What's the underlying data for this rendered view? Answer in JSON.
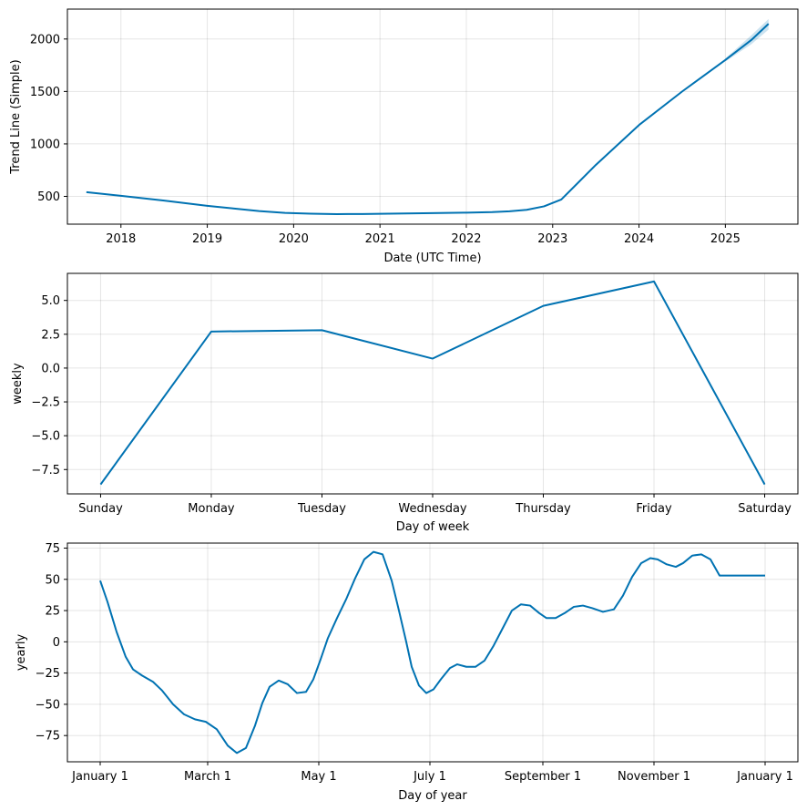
{
  "chart_data": [
    {
      "type": "line",
      "xlabel": "Date (UTC Time)",
      "ylabel": "Trend Line (Simple)",
      "x_ticks": [
        "2018",
        "2019",
        "2020",
        "2021",
        "2022",
        "2023",
        "2024",
        "2025"
      ],
      "y_ticks": [
        "500",
        "1000",
        "1500",
        "2000"
      ],
      "xlim": [
        2017.38,
        2025.84
      ],
      "ylim": [
        235,
        2285
      ],
      "grid": true,
      "series": [
        {
          "x": [
            2017.6,
            2018.0,
            2018.5,
            2019.0,
            2019.3,
            2019.6,
            2019.9,
            2020.2,
            2020.5,
            2020.8,
            2021.2,
            2021.6,
            2022.0,
            2022.3,
            2022.5,
            2022.7,
            2022.9,
            2023.1,
            2023.5,
            2024.0,
            2024.5,
            2025.0,
            2025.3,
            2025.5
          ],
          "y": [
            540,
            505,
            460,
            410,
            385,
            360,
            343,
            335,
            331,
            332,
            336,
            340,
            345,
            350,
            358,
            372,
            405,
            470,
            800,
            1180,
            1500,
            1800,
            1990,
            2145
          ]
        }
      ],
      "band": {
        "x": [
          2025.0,
          2025.3,
          2025.5
        ],
        "lower": [
          1785,
          1950,
          2090
        ],
        "upper": [
          1815,
          2035,
          2190
        ]
      }
    },
    {
      "type": "line",
      "xlabel": "Day of week",
      "ylabel": "weekly",
      "categories": [
        "Sunday",
        "Monday",
        "Tuesday",
        "Wednesday",
        "Thursday",
        "Friday",
        "Saturday"
      ],
      "y_ticks": [
        "5.0",
        "2.5",
        "0.0",
        "−2.5",
        "−5.0",
        "−7.5"
      ],
      "ylim": [
        -9.3,
        7.0
      ],
      "grid": true,
      "series": [
        {
          "values": [
            -8.6,
            2.7,
            2.8,
            0.7,
            4.6,
            6.4,
            -8.6
          ]
        }
      ]
    },
    {
      "type": "line",
      "xlabel": "Day of year",
      "ylabel": "yearly",
      "x_ticks": [
        "January 1",
        "March 1",
        "May 1",
        "July 1",
        "September 1",
        "November 1",
        "January 1"
      ],
      "x_tick_days": [
        0,
        59,
        120,
        181,
        243,
        304,
        365
      ],
      "y_ticks": [
        "75",
        "50",
        "25",
        "0",
        "−25",
        "−50",
        "−75"
      ],
      "xlim": [
        -18,
        383
      ],
      "ylim": [
        -96,
        79
      ],
      "grid": true,
      "series": [
        {
          "x": [
            0,
            4,
            9,
            14,
            18,
            23,
            29,
            34,
            40,
            46,
            52,
            58,
            64,
            70,
            75,
            80,
            85,
            89,
            93,
            98,
            103,
            108,
            113,
            117,
            121,
            125,
            130,
            135,
            140,
            145,
            150,
            155,
            160,
            164,
            168,
            171,
            175,
            179,
            183,
            187,
            192,
            196,
            201,
            206,
            211,
            216,
            221,
            226,
            231,
            236,
            241,
            245,
            250,
            255,
            260,
            265,
            270,
            276,
            282,
            287,
            292,
            297,
            302,
            306,
            311,
            316,
            320,
            325,
            330,
            335,
            340,
            345,
            350,
            355,
            360,
            365
          ],
          "y": [
            49,
            32,
            8,
            -12,
            -22,
            -27,
            -32,
            -39,
            -50,
            -58,
            -62,
            -64,
            -70,
            -83,
            -89,
            -85,
            -67,
            -49,
            -36,
            -31,
            -34,
            -41,
            -40,
            -30,
            -14,
            3,
            19,
            34,
            51,
            66,
            72,
            70,
            49,
            25,
            0,
            -20,
            -35,
            -41,
            -38,
            -30,
            -21,
            -18,
            -20,
            -20,
            -15,
            -3,
            11,
            25,
            30,
            29,
            23,
            19,
            19,
            23,
            28,
            29,
            27,
            24,
            26,
            37,
            52,
            63,
            67,
            66,
            62,
            60,
            63,
            69,
            70,
            66,
            53,
            53,
            53,
            53,
            53,
            53
          ]
        }
      ]
    }
  ]
}
